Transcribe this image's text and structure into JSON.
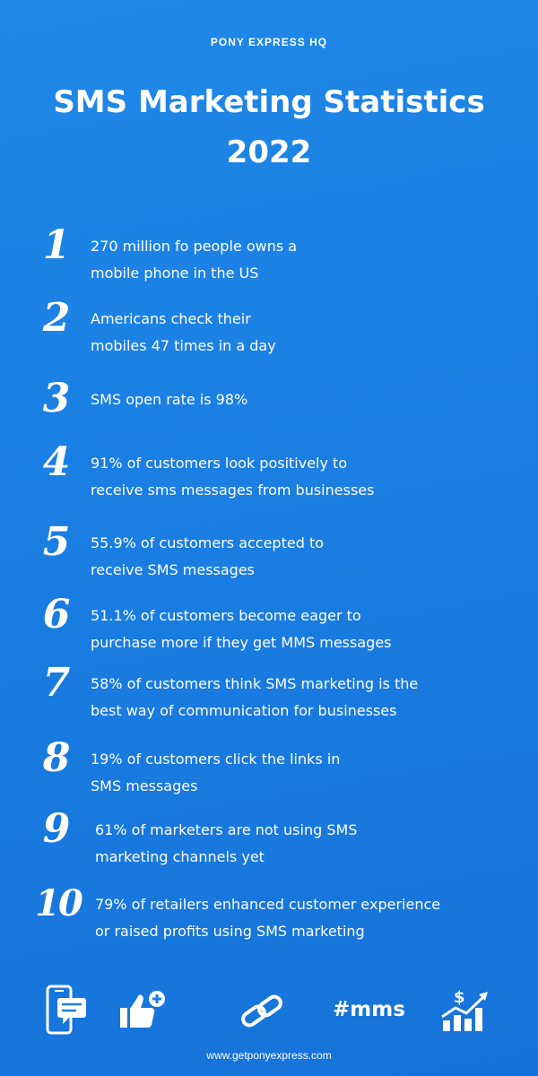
{
  "header": {
    "brand": "PONY EXPRESS HQ",
    "title": "SMS Marketing Statistics 2022"
  },
  "stats": [
    {
      "num": "1",
      "line1": "270 million fo people owns a",
      "line2": "mobile phone in the US"
    },
    {
      "num": "2",
      "line1": "Americans check their",
      "line2": "mobiles 47 times in a day"
    },
    {
      "num": "3",
      "line1": "SMS open rate is 98%",
      "line2": ""
    },
    {
      "num": "4",
      "line1": "91% of customers look positively to",
      "line2": "receive sms messages from businesses"
    },
    {
      "num": "5",
      "line1": "55.9% of customers accepted to",
      "line2": "receive SMS messages"
    },
    {
      "num": "6",
      "line1": "51.1% of customers become eager to",
      "line2": "purchase more if they get MMS messages"
    },
    {
      "num": "7",
      "line1": "58% of customers think SMS marketing is the",
      "line2": "best way of communication for businesses"
    },
    {
      "num": "8",
      "line1": "19% of customers click the links in",
      "line2": "SMS messages"
    },
    {
      "num": "9",
      "line1": "61% of marketers are not using SMS",
      "line2": "marketing channels yet"
    },
    {
      "num": "10",
      "line1": "79% of retailers enhanced customer experience",
      "line2": "or raised profits using SMS marketing"
    }
  ],
  "footer": {
    "icons": [
      "phone-message-icon",
      "thumbs-up-plus-icon",
      "link-chain-icon",
      "hashtag-mms-icon",
      "growth-chart-dollar-icon"
    ],
    "hashtag": "#mms",
    "url": "www.getponyexpress.com"
  },
  "colors": {
    "background": "#1a7ee3",
    "text": "#ffffff"
  }
}
